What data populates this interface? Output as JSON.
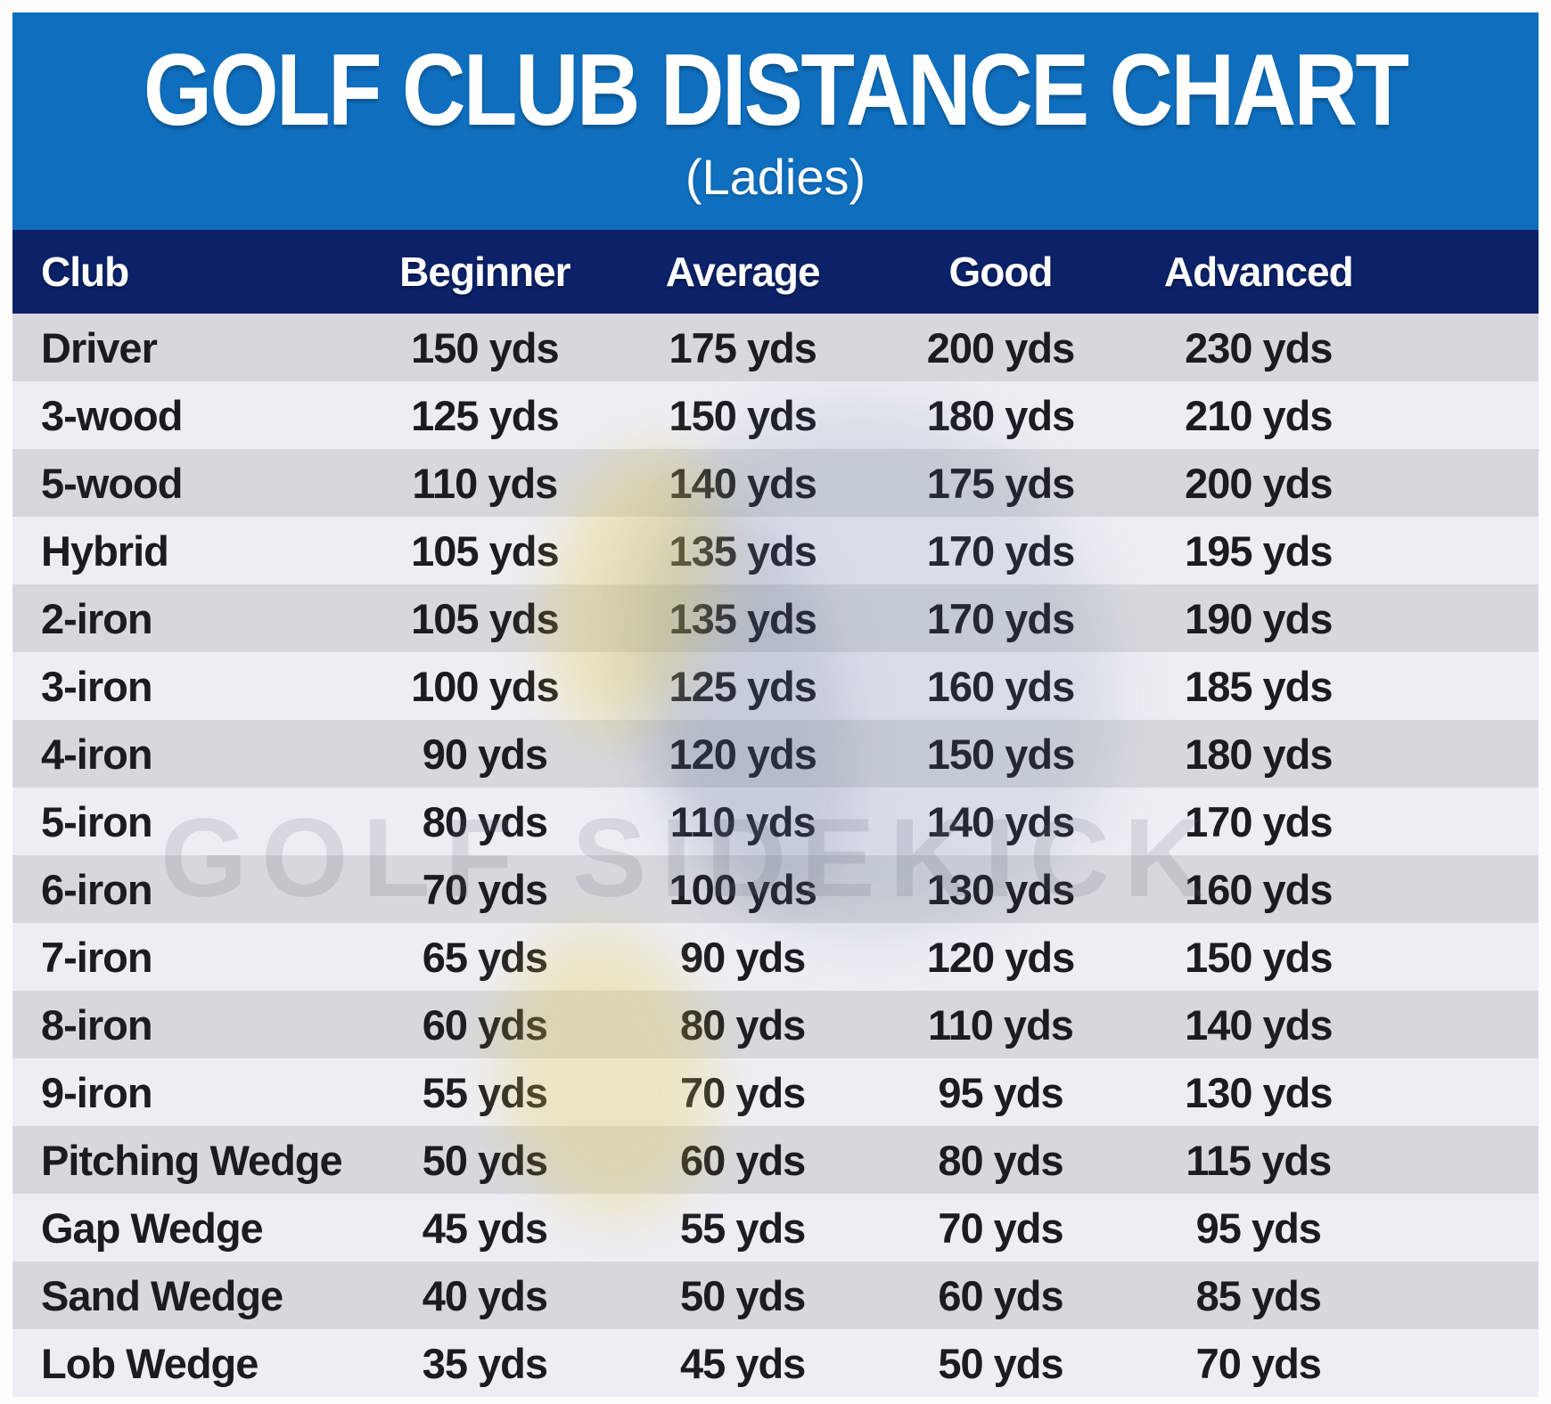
{
  "title": "GOLF CLUB DISTANCE CHART",
  "subtitle": "(Ladies)",
  "watermark": "GOLF SIDEKICK",
  "colors": {
    "banner_blue": "#0f6fbe",
    "header_navy": "#0b2168",
    "row_gray": "#d6d8dd",
    "row_light": "#edeef4",
    "text_dark": "#1b1b22",
    "text_white": "#ffffff"
  },
  "chart_data": {
    "type": "table",
    "title": "GOLF CLUB DISTANCE CHART",
    "subtitle": "(Ladies)",
    "unit": "yds",
    "unit_suffix": " yds",
    "columns": [
      "Club",
      "Beginner",
      "Average",
      "Good",
      "Advanced"
    ],
    "rows": [
      {
        "club": "Driver",
        "beginner": 150,
        "average": 175,
        "good": 200,
        "advanced": 230
      },
      {
        "club": "3-wood",
        "beginner": 125,
        "average": 150,
        "good": 180,
        "advanced": 210
      },
      {
        "club": "5-wood",
        "beginner": 110,
        "average": 140,
        "good": 175,
        "advanced": 200
      },
      {
        "club": "Hybrid",
        "beginner": 105,
        "average": 135,
        "good": 170,
        "advanced": 195
      },
      {
        "club": "2-iron",
        "beginner": 105,
        "average": 135,
        "good": 170,
        "advanced": 190
      },
      {
        "club": "3-iron",
        "beginner": 100,
        "average": 125,
        "good": 160,
        "advanced": 185
      },
      {
        "club": "4-iron",
        "beginner": 90,
        "average": 120,
        "good": 150,
        "advanced": 180
      },
      {
        "club": "5-iron",
        "beginner": 80,
        "average": 110,
        "good": 140,
        "advanced": 170
      },
      {
        "club": "6-iron",
        "beginner": 70,
        "average": 100,
        "good": 130,
        "advanced": 160
      },
      {
        "club": "7-iron",
        "beginner": 65,
        "average": 90,
        "good": 120,
        "advanced": 150
      },
      {
        "club": "8-iron",
        "beginner": 60,
        "average": 80,
        "good": 110,
        "advanced": 140
      },
      {
        "club": "9-iron",
        "beginner": 55,
        "average": 70,
        "good": 95,
        "advanced": 130
      },
      {
        "club": "Pitching Wedge",
        "beginner": 50,
        "average": 60,
        "good": 80,
        "advanced": 115
      },
      {
        "club": "Gap Wedge",
        "beginner": 45,
        "average": 55,
        "good": 70,
        "advanced": 95
      },
      {
        "club": "Sand Wedge",
        "beginner": 40,
        "average": 50,
        "good": 60,
        "advanced": 85
      },
      {
        "club": "Lob Wedge",
        "beginner": 35,
        "average": 45,
        "good": 50,
        "advanced": 70
      }
    ]
  }
}
